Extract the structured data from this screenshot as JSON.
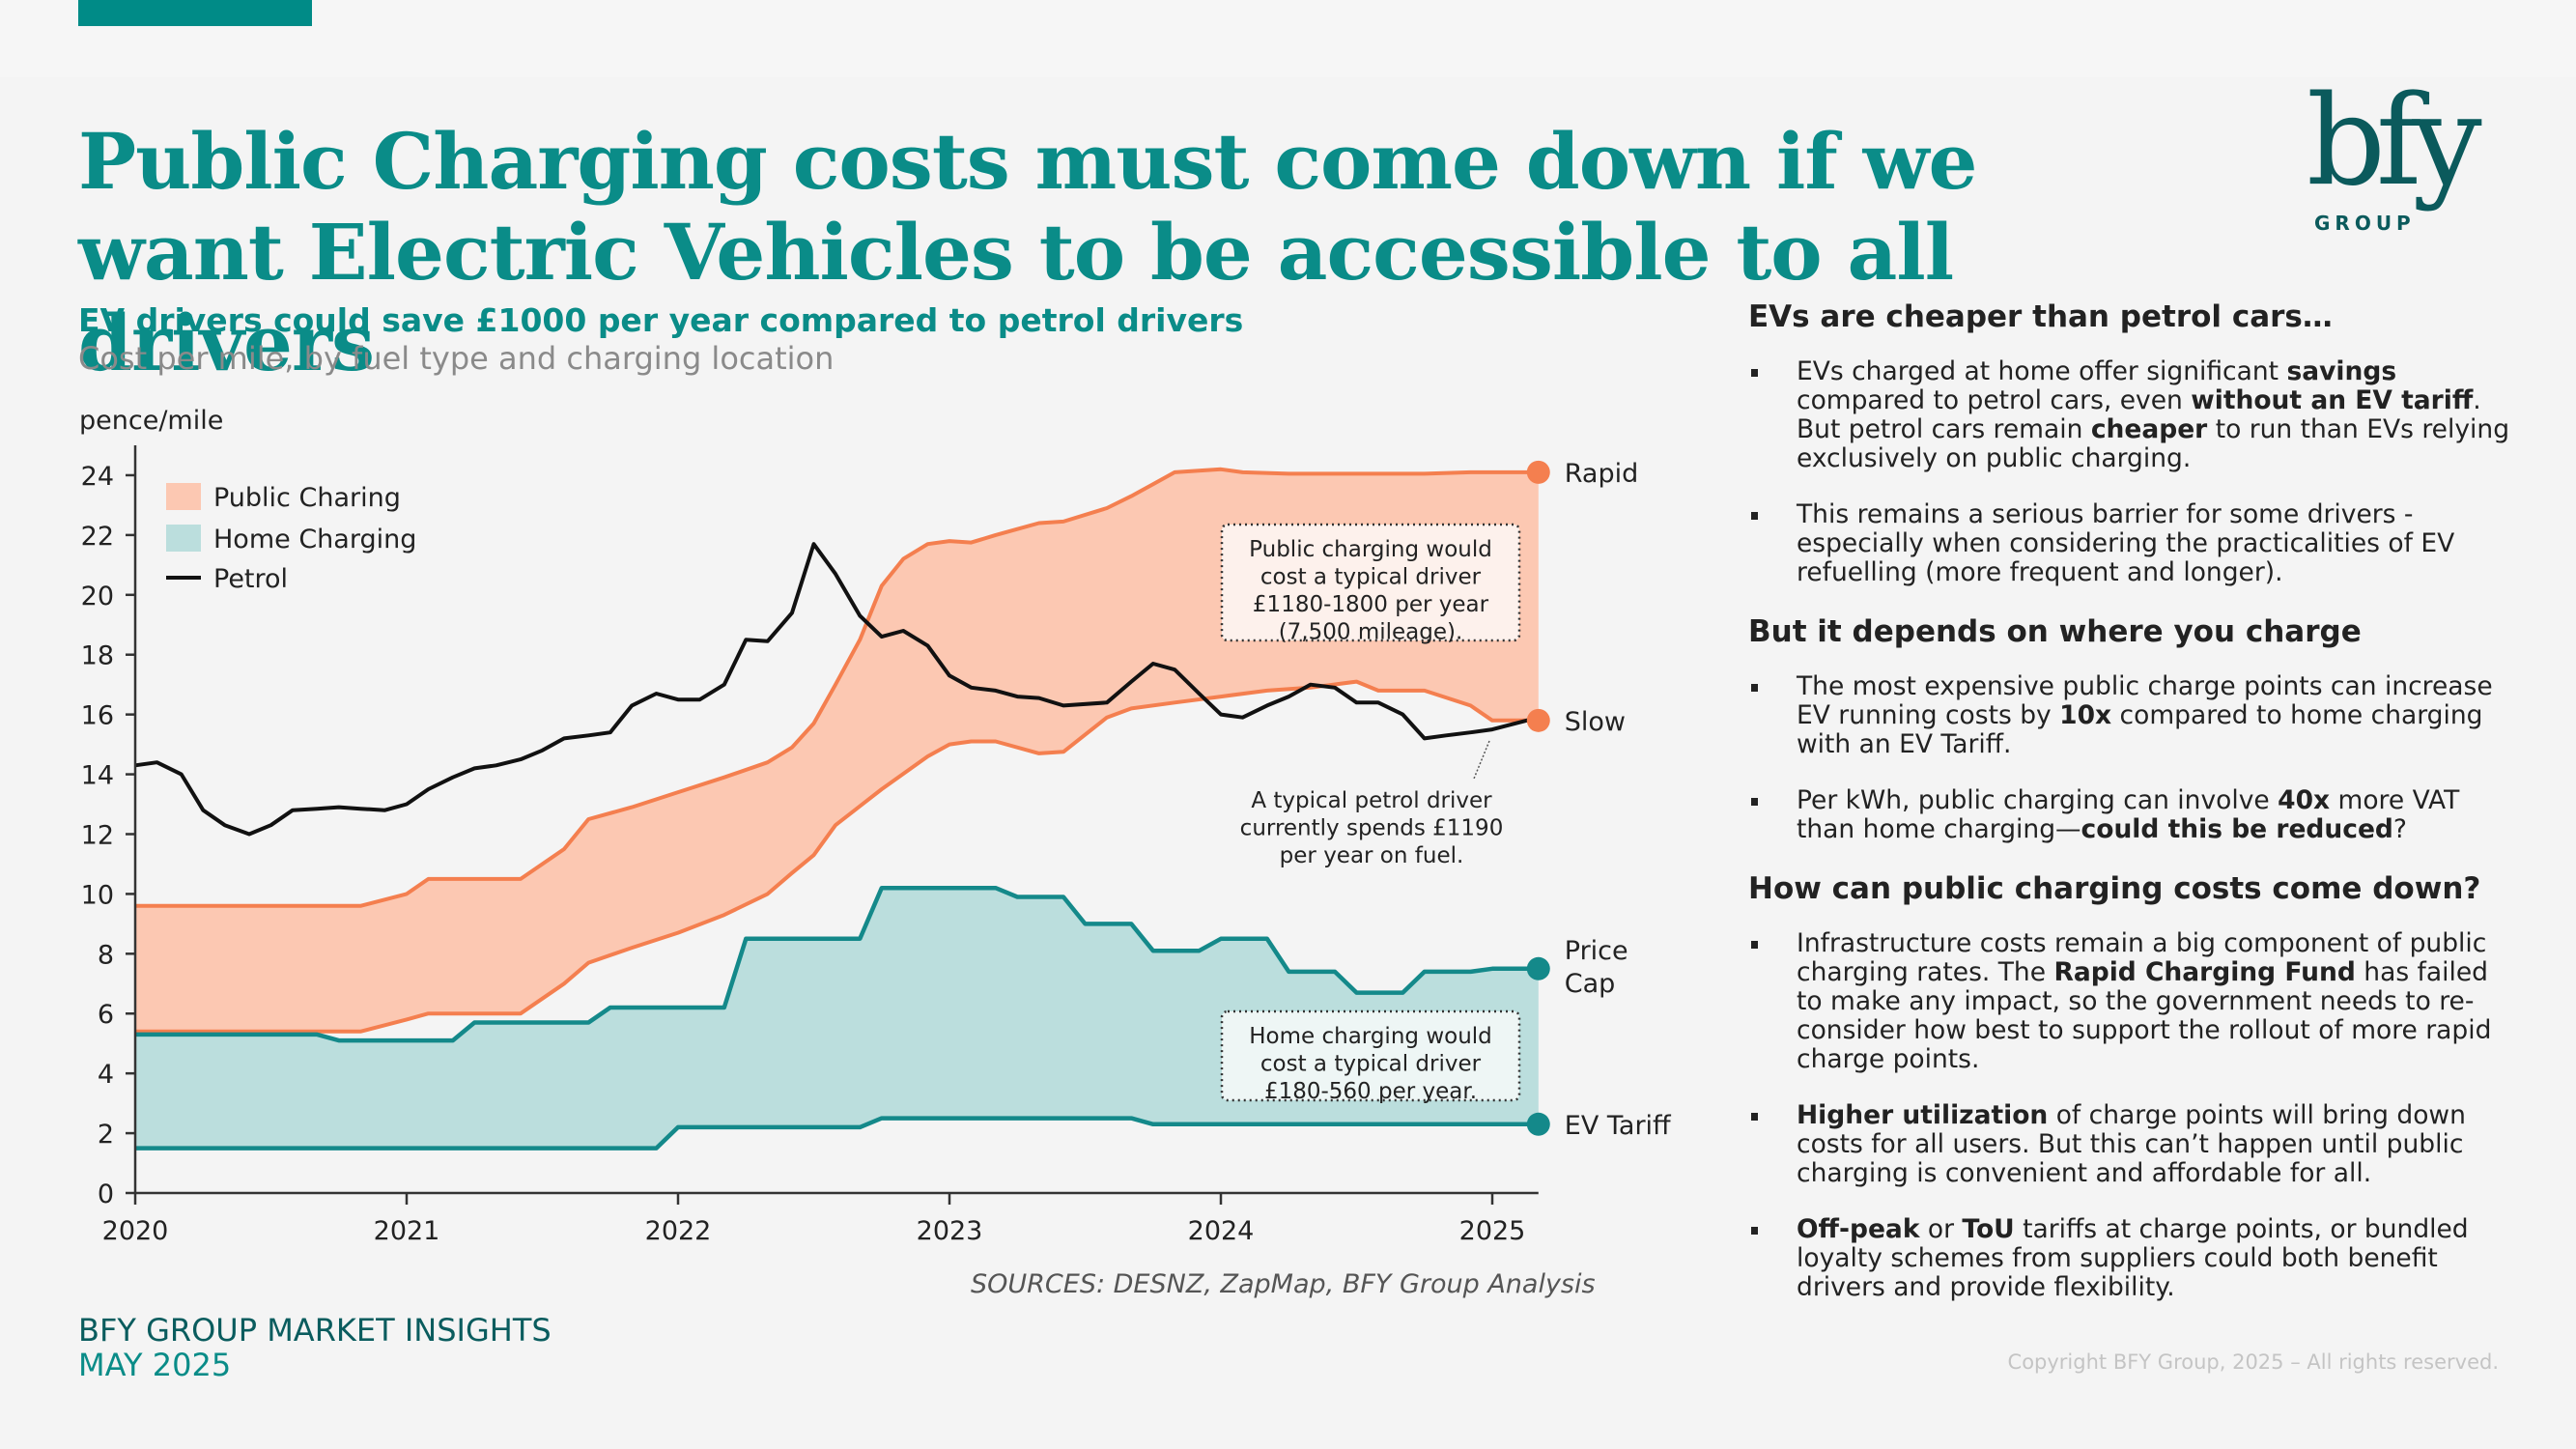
{
  "header": {
    "title": "Public Charging costs must come down if we want Electric Vehicles to be accessible to all drivers",
    "logo_text": "bfy",
    "logo_subtext": "GROUP"
  },
  "chart_header": {
    "title": "EV drivers could save £1000 per year compared to petrol drivers",
    "subtitle": "Cost per mile, by fuel type and charging location"
  },
  "colors": {
    "brand_teal": "#0a8c88",
    "public_fill": "#fcc8b2",
    "public_line": "#f47f4f",
    "home_fill": "#bbdedd",
    "home_line": "#14898a",
    "petrol_line": "#111111"
  },
  "chart_data": {
    "type": "area",
    "title": "EV drivers could save £1000 per year compared to petrol drivers",
    "subtitle": "Cost per mile, by fuel type and charging location",
    "xlabel": "",
    "ylabel": "pence/mile",
    "xlim": [
      2020,
      2025.17
    ],
    "ylim": [
      0,
      25
    ],
    "x_ticks": [
      2020,
      2021,
      2022,
      2023,
      2024,
      2025
    ],
    "x_tick_labels": [
      "2020",
      "2021",
      "2022",
      "2023",
      "2024",
      "2025"
    ],
    "y_ticks": [
      0,
      2,
      4,
      6,
      8,
      10,
      12,
      14,
      16,
      18,
      20,
      22,
      24
    ],
    "y_tick_labels": [
      "0",
      "2",
      "4",
      "6",
      "8",
      "10",
      "12",
      "14",
      "16",
      "18",
      "20",
      "22",
      "24"
    ],
    "grid": false,
    "legend": {
      "placement": "top-left",
      "entries": [
        {
          "label": "Public Charing",
          "kind": "area",
          "series": "public"
        },
        {
          "label": "Home Charging",
          "kind": "area",
          "series": "home"
        },
        {
          "label": "Petrol",
          "kind": "line",
          "series": "petrol"
        }
      ]
    },
    "series": [
      {
        "name": "Rapid",
        "group": "public",
        "end_label": "Rapid",
        "points": [
          [
            2020,
            9.6
          ],
          [
            2020.83,
            9.6
          ],
          [
            2021,
            10.0
          ],
          [
            2021.08,
            10.5
          ],
          [
            2021.42,
            10.5
          ],
          [
            2021.58,
            11.5
          ],
          [
            2021.67,
            12.5
          ],
          [
            2021.83,
            12.9
          ],
          [
            2022,
            13.4
          ],
          [
            2022.17,
            13.9
          ],
          [
            2022.33,
            14.4
          ],
          [
            2022.42,
            14.9
          ],
          [
            2022.5,
            15.7
          ],
          [
            2022.58,
            17.0
          ],
          [
            2022.67,
            18.5
          ],
          [
            2022.75,
            20.3
          ],
          [
            2022.83,
            21.2
          ],
          [
            2022.92,
            21.7
          ],
          [
            2023,
            21.8
          ],
          [
            2023.08,
            21.75
          ],
          [
            2023.17,
            22.0
          ],
          [
            2023.25,
            22.2
          ],
          [
            2023.33,
            22.4
          ],
          [
            2023.42,
            22.45
          ],
          [
            2023.58,
            22.9
          ],
          [
            2023.67,
            23.3
          ],
          [
            2023.75,
            23.7
          ],
          [
            2023.83,
            24.1
          ],
          [
            2024,
            24.2
          ],
          [
            2024.08,
            24.1
          ],
          [
            2024.25,
            24.05
          ],
          [
            2024.5,
            24.05
          ],
          [
            2024.75,
            24.05
          ],
          [
            2024.92,
            24.1
          ],
          [
            2025.17,
            24.1
          ]
        ]
      },
      {
        "name": "Slow",
        "group": "public",
        "end_label": "Slow",
        "points": [
          [
            2020,
            5.4
          ],
          [
            2020.83,
            5.4
          ],
          [
            2021,
            5.8
          ],
          [
            2021.08,
            6.0
          ],
          [
            2021.42,
            6.0
          ],
          [
            2021.58,
            7.0
          ],
          [
            2021.67,
            7.7
          ],
          [
            2021.83,
            8.2
          ],
          [
            2022,
            8.7
          ],
          [
            2022.17,
            9.3
          ],
          [
            2022.33,
            10.0
          ],
          [
            2022.42,
            10.7
          ],
          [
            2022.5,
            11.3
          ],
          [
            2022.58,
            12.3
          ],
          [
            2022.75,
            13.5
          ],
          [
            2022.92,
            14.6
          ],
          [
            2023,
            15.0
          ],
          [
            2023.08,
            15.1
          ],
          [
            2023.17,
            15.1
          ],
          [
            2023.33,
            14.7
          ],
          [
            2023.42,
            14.75
          ],
          [
            2023.58,
            15.9
          ],
          [
            2023.67,
            16.2
          ],
          [
            2023.83,
            16.4
          ],
          [
            2024,
            16.6
          ],
          [
            2024.17,
            16.8
          ],
          [
            2024.33,
            16.9
          ],
          [
            2024.5,
            17.1
          ],
          [
            2024.58,
            16.8
          ],
          [
            2024.75,
            16.8
          ],
          [
            2024.92,
            16.3
          ],
          [
            2025,
            15.8
          ],
          [
            2025.17,
            15.8
          ]
        ]
      },
      {
        "name": "Price Cap",
        "group": "home",
        "end_label": "Price Cap",
        "points": [
          [
            2020,
            5.3
          ],
          [
            2020.25,
            5.3
          ],
          [
            2020.67,
            5.3
          ],
          [
            2020.75,
            5.1
          ],
          [
            2021,
            5.1
          ],
          [
            2021.17,
            5.1
          ],
          [
            2021.25,
            5.7
          ],
          [
            2021.5,
            5.7
          ],
          [
            2021.67,
            5.7
          ],
          [
            2021.75,
            6.2
          ],
          [
            2022,
            6.2
          ],
          [
            2022.17,
            6.2
          ],
          [
            2022.25,
            8.5
          ],
          [
            2022.67,
            8.5
          ],
          [
            2022.75,
            10.2
          ],
          [
            2023,
            10.2
          ],
          [
            2023.17,
            10.2
          ],
          [
            2023.25,
            9.9
          ],
          [
            2023.42,
            9.9
          ],
          [
            2023.5,
            9.0
          ],
          [
            2023.67,
            9.0
          ],
          [
            2023.75,
            8.1
          ],
          [
            2023.92,
            8.1
          ],
          [
            2024,
            8.5
          ],
          [
            2024.17,
            8.5
          ],
          [
            2024.25,
            7.4
          ],
          [
            2024.42,
            7.4
          ],
          [
            2024.5,
            6.7
          ],
          [
            2024.67,
            6.7
          ],
          [
            2024.75,
            7.4
          ],
          [
            2024.92,
            7.4
          ],
          [
            2025,
            7.5
          ],
          [
            2025.17,
            7.5
          ]
        ]
      },
      {
        "name": "EV Tariff",
        "group": "home",
        "end_label": "EV Tariff",
        "points": [
          [
            2020,
            1.5
          ],
          [
            2021,
            1.5
          ],
          [
            2021.92,
            1.5
          ],
          [
            2022,
            2.2
          ],
          [
            2022.67,
            2.2
          ],
          [
            2022.75,
            2.5
          ],
          [
            2023,
            2.5
          ],
          [
            2023.5,
            2.5
          ],
          [
            2023.67,
            2.5
          ],
          [
            2023.75,
            2.3
          ],
          [
            2024,
            2.3
          ],
          [
            2024.5,
            2.3
          ],
          [
            2025.17,
            2.3
          ]
        ]
      },
      {
        "name": "Petrol",
        "group": "petrol",
        "points": [
          [
            2020,
            14.3
          ],
          [
            2020.08,
            14.4
          ],
          [
            2020.17,
            14.0
          ],
          [
            2020.25,
            12.8
          ],
          [
            2020.33,
            12.3
          ],
          [
            2020.42,
            12.0
          ],
          [
            2020.5,
            12.3
          ],
          [
            2020.58,
            12.8
          ],
          [
            2020.67,
            12.85
          ],
          [
            2020.75,
            12.9
          ],
          [
            2020.83,
            12.85
          ],
          [
            2020.92,
            12.8
          ],
          [
            2021,
            13.0
          ],
          [
            2021.08,
            13.5
          ],
          [
            2021.17,
            13.9
          ],
          [
            2021.25,
            14.2
          ],
          [
            2021.33,
            14.3
          ],
          [
            2021.42,
            14.5
          ],
          [
            2021.5,
            14.8
          ],
          [
            2021.58,
            15.2
          ],
          [
            2021.67,
            15.3
          ],
          [
            2021.75,
            15.4
          ],
          [
            2021.83,
            16.3
          ],
          [
            2021.92,
            16.7
          ],
          [
            2022,
            16.5
          ],
          [
            2022.08,
            16.5
          ],
          [
            2022.17,
            17.0
          ],
          [
            2022.25,
            18.5
          ],
          [
            2022.33,
            18.45
          ],
          [
            2022.42,
            19.4
          ],
          [
            2022.5,
            21.7
          ],
          [
            2022.58,
            20.7
          ],
          [
            2022.67,
            19.3
          ],
          [
            2022.75,
            18.6
          ],
          [
            2022.83,
            18.8
          ],
          [
            2022.92,
            18.3
          ],
          [
            2023,
            17.3
          ],
          [
            2023.08,
            16.9
          ],
          [
            2023.17,
            16.8
          ],
          [
            2023.25,
            16.6
          ],
          [
            2023.33,
            16.55
          ],
          [
            2023.42,
            16.3
          ],
          [
            2023.58,
            16.4
          ],
          [
            2023.67,
            17.1
          ],
          [
            2023.75,
            17.7
          ],
          [
            2023.83,
            17.5
          ],
          [
            2023.92,
            16.7
          ],
          [
            2024,
            16.0
          ],
          [
            2024.08,
            15.9
          ],
          [
            2024.17,
            16.3
          ],
          [
            2024.25,
            16.6
          ],
          [
            2024.33,
            17.0
          ],
          [
            2024.42,
            16.9
          ],
          [
            2024.5,
            16.4
          ],
          [
            2024.58,
            16.4
          ],
          [
            2024.67,
            16.0
          ],
          [
            2024.75,
            15.2
          ],
          [
            2024.83,
            15.3
          ],
          [
            2024.92,
            15.4
          ],
          [
            2025,
            15.5
          ],
          [
            2025.17,
            15.9
          ]
        ]
      }
    ],
    "annotations": [
      {
        "id": "public",
        "lines": [
          "Public charging would",
          "cost a typical driver",
          "£1180-1800 per year",
          "(7,500 mileage)."
        ]
      },
      {
        "id": "petrol",
        "lines": [
          "A typical petrol driver",
          "currently spends £1190",
          "per year on fuel."
        ]
      },
      {
        "id": "home",
        "lines": [
          "Home charging would",
          "cost a typical driver",
          "£180-560 per year."
        ]
      }
    ],
    "source": "SOURCES: DESNZ, ZapMap, BFY Group Analysis"
  },
  "right_panel": {
    "sections": [
      {
        "heading": "EVs are cheaper than petrol cars…",
        "bullets": [
          [
            {
              "t": "EVs charged at home offer significant "
            },
            {
              "t": "savings",
              "b": true
            },
            {
              "t": " compared to petrol cars, even "
            },
            {
              "t": "without an EV tariff",
              "b": true
            },
            {
              "t": ". But petrol cars remain "
            },
            {
              "t": "cheaper",
              "b": true
            },
            {
              "t": " to run than EVs relying exclusively on public charging."
            }
          ],
          [
            {
              "t": "This remains a serious barrier for some drivers - especially when considering the practicalities of EV refuelling (more frequent and longer)."
            }
          ]
        ]
      },
      {
        "heading": "But it depends on where you charge",
        "bullets": [
          [
            {
              "t": "The most expensive public charge points can increase EV running costs by "
            },
            {
              "t": "10x",
              "b": true
            },
            {
              "t": " compared to home charging with an EV Tariff."
            }
          ],
          [
            {
              "t": "Per kWh, public charging can involve "
            },
            {
              "t": "40x",
              "b": true
            },
            {
              "t": " more VAT than home charging—"
            },
            {
              "t": "could this be reduced",
              "b": true
            },
            {
              "t": "?"
            }
          ]
        ]
      },
      {
        "heading": "How can public charging costs come down?",
        "bullets": [
          [
            {
              "t": "Infrastructure costs remain a big component of public charging rates.  The "
            },
            {
              "t": "Rapid Charging Fund",
              "b": true
            },
            {
              "t": " has failed to make any impact, so the government needs to re-consider how best to support the rollout of more rapid charge points."
            }
          ],
          [
            {
              "t": "Higher utilization",
              "b": true
            },
            {
              "t": " of charge points will bring down costs for all users. But this can’t happen until public charging is convenient and affordable for all."
            }
          ],
          [
            {
              "t": "Off-peak",
              "b": true
            },
            {
              "t": " or "
            },
            {
              "t": "ToU",
              "b": true
            },
            {
              "t": " tariffs at charge points, or bundled loyalty schemes from suppliers could both benefit drivers and provide flexibility."
            }
          ]
        ]
      }
    ]
  },
  "footer": {
    "line1": "BFY GROUP MARKET INSIGHTS",
    "line2": "MAY 2025",
    "copyright": "Copyright BFY Group, 2025 – All rights reserved."
  }
}
